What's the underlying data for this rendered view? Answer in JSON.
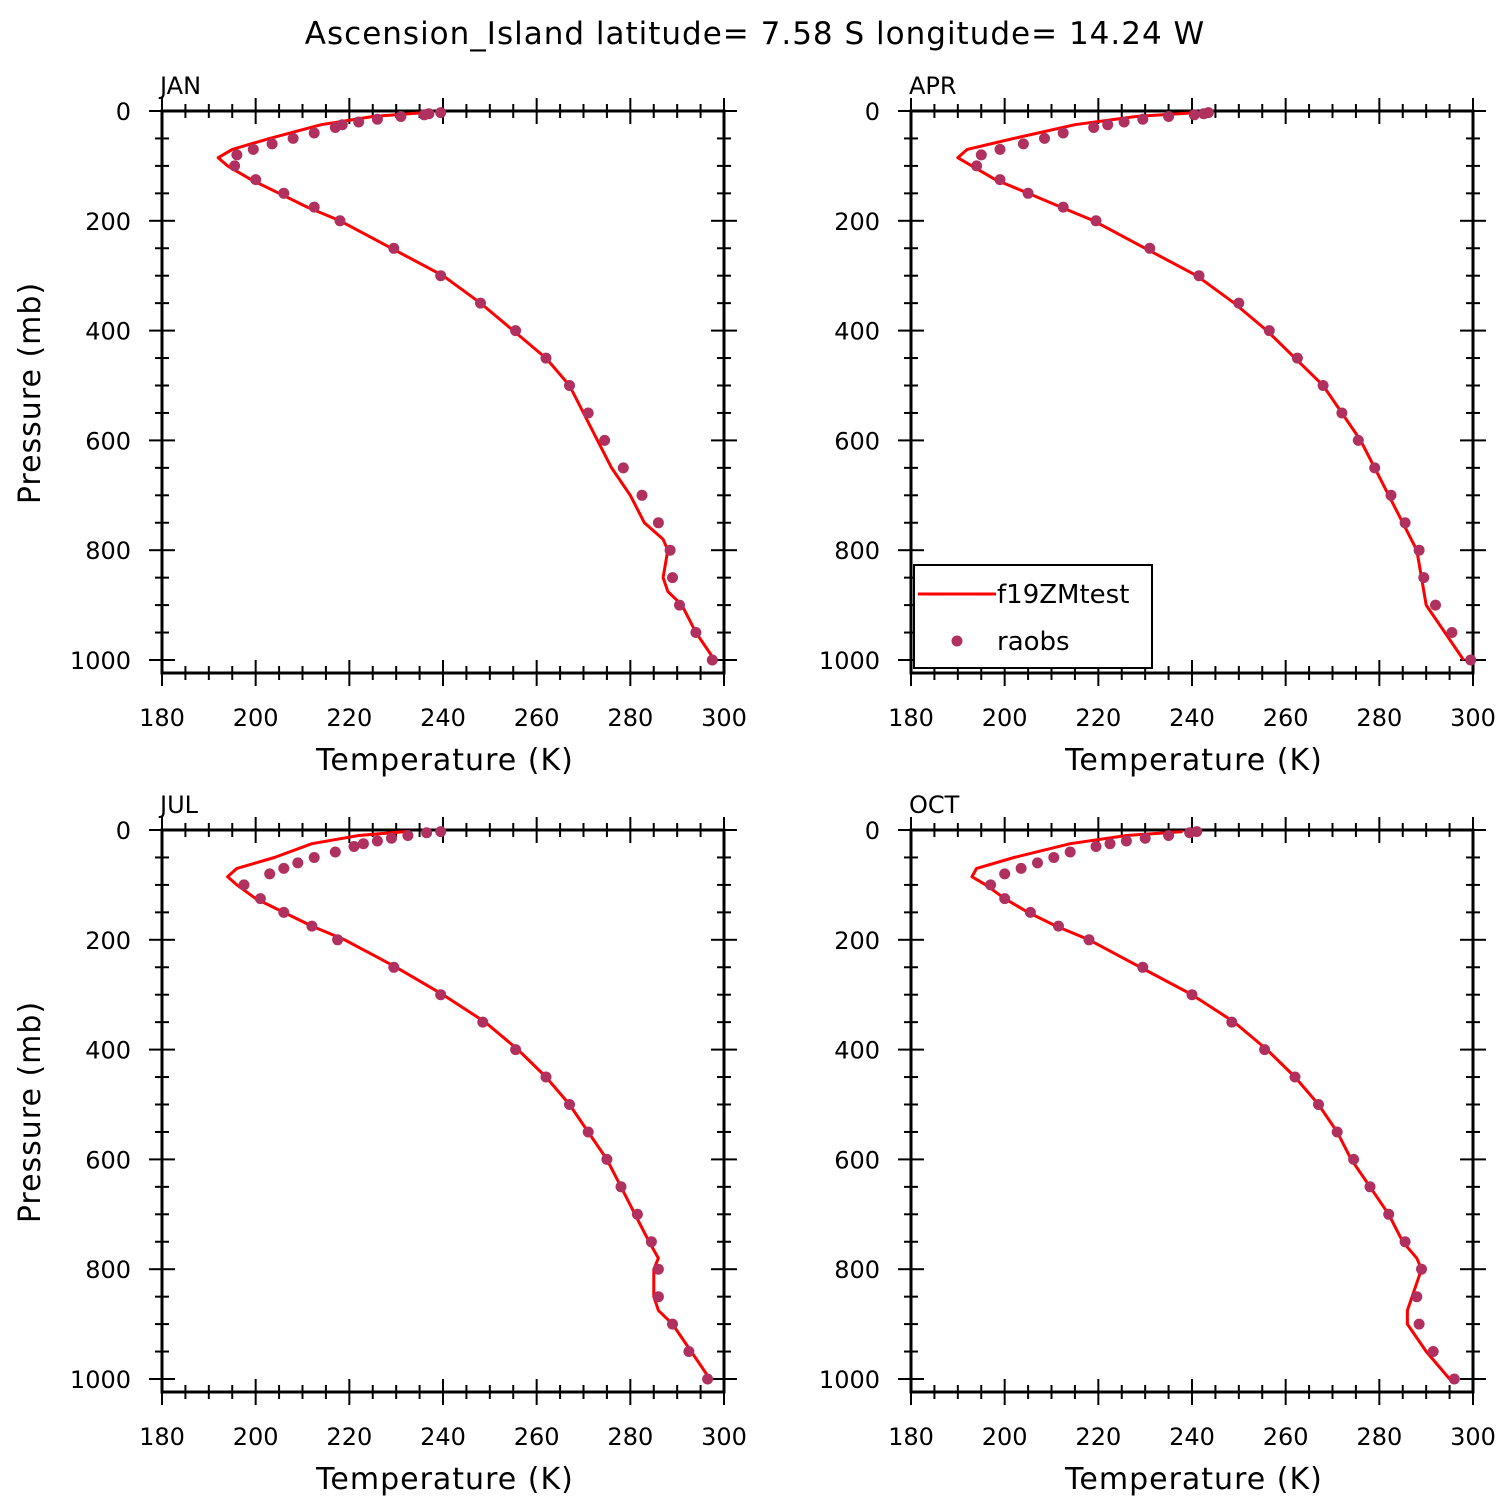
{
  "title": "Ascension_Island  latitude= 7.58 S longitude= 14.24 W",
  "legend": {
    "line_label": "f19ZMtest",
    "points_label": "raobs"
  },
  "colors": {
    "model_line": "#ff0000",
    "obs_points": "#b03060",
    "axes": "#000000"
  },
  "chart_data": [
    {
      "type": "line",
      "panel": "JAN",
      "xlabel": "Temperature (K)",
      "ylabel": "Pressure (mb)",
      "xlim": [
        180,
        300
      ],
      "ylim": [
        1000,
        0
      ],
      "xticks": [
        180,
        200,
        220,
        240,
        260,
        280,
        300
      ],
      "yticks": [
        0,
        200,
        400,
        600,
        800,
        1000
      ],
      "series": [
        {
          "name": "f19ZMtest",
          "style": "line",
          "points": [
            [
              236,
              3
            ],
            [
              225,
              10
            ],
            [
              214,
              25
            ],
            [
              203,
              50
            ],
            [
              195,
              70
            ],
            [
              192,
              85
            ],
            [
              194,
              100
            ],
            [
              199,
              125
            ],
            [
              205,
              150
            ],
            [
              211,
              175
            ],
            [
              218,
              200
            ],
            [
              229,
              250
            ],
            [
              240,
              300
            ],
            [
              248,
              350
            ],
            [
              255,
              400
            ],
            [
              262,
              450
            ],
            [
              267,
              500
            ],
            [
              270,
              550
            ],
            [
              273,
              600
            ],
            [
              276,
              650
            ],
            [
              280,
              700
            ],
            [
              283,
              750
            ],
            [
              287,
              780
            ],
            [
              288,
              800
            ],
            [
              287,
              850
            ],
            [
              288,
              875
            ],
            [
              291,
              900
            ],
            [
              294,
              950
            ],
            [
              298,
              1000
            ]
          ]
        },
        {
          "name": "raobs",
          "style": "scatter",
          "points": [
            [
              239.5,
              3
            ],
            [
              237,
              5
            ],
            [
              236,
              7
            ],
            [
              231,
              10
            ],
            [
              226,
              15
            ],
            [
              222,
              20
            ],
            [
              218.5,
              25
            ],
            [
              217,
              30
            ],
            [
              212.5,
              40
            ],
            [
              208,
              50
            ],
            [
              203.5,
              60
            ],
            [
              199.5,
              70
            ],
            [
              196,
              80
            ],
            [
              195.5,
              100
            ],
            [
              200,
              125
            ],
            [
              206,
              150
            ],
            [
              212.5,
              175
            ],
            [
              218,
              200
            ],
            [
              229.5,
              250
            ],
            [
              239.5,
              300
            ],
            [
              248,
              350
            ],
            [
              255.5,
              400
            ],
            [
              262,
              450
            ],
            [
              267,
              500
            ],
            [
              271,
              550
            ],
            [
              274.5,
              600
            ],
            [
              278.5,
              650
            ],
            [
              282.5,
              700
            ],
            [
              286,
              750
            ],
            [
              288.5,
              800
            ],
            [
              289,
              850
            ],
            [
              290.5,
              900
            ],
            [
              294,
              950
            ],
            [
              297.5,
              1000
            ]
          ]
        }
      ]
    },
    {
      "type": "line",
      "panel": "APR",
      "xlabel": "Temperature (K)",
      "ylabel": "",
      "xlim": [
        180,
        300
      ],
      "ylim": [
        1000,
        0
      ],
      "xticks": [
        180,
        200,
        220,
        240,
        260,
        280,
        300
      ],
      "yticks": [
        0,
        200,
        400,
        600,
        800,
        1000
      ],
      "series": [
        {
          "name": "f19ZMtest",
          "style": "line",
          "points": [
            [
              241,
              3
            ],
            [
              228,
              10
            ],
            [
              215,
              25
            ],
            [
              202,
              50
            ],
            [
              192,
              70
            ],
            [
              190,
              85
            ],
            [
              193,
              100
            ],
            [
              198,
              125
            ],
            [
              205,
              150
            ],
            [
              212,
              175
            ],
            [
              219,
              200
            ],
            [
              230,
              250
            ],
            [
              241,
              300
            ],
            [
              249,
              350
            ],
            [
              256,
              400
            ],
            [
              262,
              450
            ],
            [
              268,
              500
            ],
            [
              272,
              550
            ],
            [
              276,
              600
            ],
            [
              279,
              650
            ],
            [
              282,
              700
            ],
            [
              285,
              750
            ],
            [
              288,
              800
            ],
            [
              289,
              850
            ],
            [
              290,
              900
            ],
            [
              294,
              950
            ],
            [
              298,
              1000
            ]
          ]
        },
        {
          "name": "raobs",
          "style": "scatter",
          "points": [
            [
              243.5,
              3
            ],
            [
              242.5,
              5
            ],
            [
              240.5,
              7
            ],
            [
              235,
              10
            ],
            [
              229.5,
              15
            ],
            [
              225.5,
              20
            ],
            [
              222,
              25
            ],
            [
              219,
              30
            ],
            [
              212.5,
              40
            ],
            [
              208.5,
              50
            ],
            [
              204,
              60
            ],
            [
              199,
              70
            ],
            [
              195,
              80
            ],
            [
              194,
              100
            ],
            [
              199,
              125
            ],
            [
              205,
              150
            ],
            [
              212.5,
              175
            ],
            [
              219.5,
              200
            ],
            [
              231,
              250
            ],
            [
              241.5,
              300
            ],
            [
              250,
              350
            ],
            [
              256.5,
              400
            ],
            [
              262.5,
              450
            ],
            [
              268,
              500
            ],
            [
              272,
              550
            ],
            [
              275.5,
              600
            ],
            [
              279,
              650
            ],
            [
              282.5,
              700
            ],
            [
              285.5,
              750
            ],
            [
              288.5,
              800
            ],
            [
              289.5,
              850
            ],
            [
              292,
              900
            ],
            [
              295.5,
              950
            ],
            [
              299.5,
              1000
            ]
          ]
        }
      ]
    },
    {
      "type": "line",
      "panel": "JUL",
      "xlabel": "Temperature (K)",
      "ylabel": "Pressure (mb)",
      "xlim": [
        180,
        300
      ],
      "ylim": [
        1000,
        0
      ],
      "xticks": [
        180,
        200,
        220,
        240,
        260,
        280,
        300
      ],
      "yticks": [
        0,
        200,
        400,
        600,
        800,
        1000
      ],
      "series": [
        {
          "name": "f19ZMtest",
          "style": "line",
          "points": [
            [
              232,
              3
            ],
            [
              222,
              10
            ],
            [
              212,
              25
            ],
            [
              204,
              50
            ],
            [
              196,
              70
            ],
            [
              194,
              85
            ],
            [
              196,
              100
            ],
            [
              200,
              125
            ],
            [
              206,
              150
            ],
            [
              212,
              175
            ],
            [
              219,
              200
            ],
            [
              230,
              250
            ],
            [
              240,
              300
            ],
            [
              249,
              350
            ],
            [
              256,
              400
            ],
            [
              262,
              450
            ],
            [
              267,
              500
            ],
            [
              271,
              550
            ],
            [
              275,
              600
            ],
            [
              278,
              650
            ],
            [
              281,
              700
            ],
            [
              284,
              750
            ],
            [
              286,
              780
            ],
            [
              285,
              800
            ],
            [
              285,
              850
            ],
            [
              286,
              875
            ],
            [
              289,
              900
            ],
            [
              293,
              950
            ],
            [
              297,
              1000
            ]
          ]
        },
        {
          "name": "raobs",
          "style": "scatter",
          "points": [
            [
              239.5,
              3
            ],
            [
              236.5,
              5
            ],
            [
              232.5,
              10
            ],
            [
              229,
              15
            ],
            [
              226,
              20
            ],
            [
              223,
              25
            ],
            [
              221,
              30
            ],
            [
              217,
              40
            ],
            [
              212.5,
              50
            ],
            [
              209,
              60
            ],
            [
              206,
              70
            ],
            [
              203,
              80
            ],
            [
              197.5,
              100
            ],
            [
              201,
              125
            ],
            [
              206,
              150
            ],
            [
              212,
              175
            ],
            [
              217.5,
              200
            ],
            [
              229.5,
              250
            ],
            [
              239.5,
              300
            ],
            [
              248.5,
              350
            ],
            [
              255.5,
              400
            ],
            [
              262,
              450
            ],
            [
              267,
              500
            ],
            [
              271,
              550
            ],
            [
              275,
              600
            ],
            [
              278,
              650
            ],
            [
              281.5,
              700
            ],
            [
              284.5,
              750
            ],
            [
              286,
              800
            ],
            [
              286,
              850
            ],
            [
              289,
              900
            ],
            [
              292.5,
              950
            ],
            [
              296.5,
              1000
            ]
          ]
        }
      ]
    },
    {
      "type": "line",
      "panel": "OCT",
      "xlabel": "Temperature (K)",
      "ylabel": "",
      "xlim": [
        180,
        300
      ],
      "ylim": [
        1000,
        0
      ],
      "xticks": [
        180,
        200,
        220,
        240,
        260,
        280,
        300
      ],
      "yticks": [
        0,
        200,
        400,
        600,
        800,
        1000
      ],
      "series": [
        {
          "name": "f19ZMtest",
          "style": "line",
          "points": [
            [
              238,
              3
            ],
            [
              226,
              10
            ],
            [
              214,
              25
            ],
            [
              202,
              50
            ],
            [
              194,
              70
            ],
            [
              193,
              85
            ],
            [
              196,
              100
            ],
            [
              200,
              125
            ],
            [
              205,
              150
            ],
            [
              211,
              175
            ],
            [
              218,
              200
            ],
            [
              229,
              250
            ],
            [
              240,
              300
            ],
            [
              249,
              350
            ],
            [
              256,
              400
            ],
            [
              262,
              450
            ],
            [
              267,
              500
            ],
            [
              271,
              550
            ],
            [
              274,
              600
            ],
            [
              278,
              650
            ],
            [
              282,
              700
            ],
            [
              285,
              750
            ],
            [
              288,
              780
            ],
            [
              289,
              800
            ],
            [
              287,
              850
            ],
            [
              286,
              875
            ],
            [
              286,
              900
            ],
            [
              290,
              950
            ],
            [
              295,
              1000
            ]
          ]
        },
        {
          "name": "raobs",
          "style": "scatter",
          "points": [
            [
              241,
              3
            ],
            [
              239.5,
              5
            ],
            [
              235,
              10
            ],
            [
              230,
              15
            ],
            [
              226,
              20
            ],
            [
              222.5,
              25
            ],
            [
              219.5,
              30
            ],
            [
              214,
              40
            ],
            [
              210.5,
              50
            ],
            [
              207,
              60
            ],
            [
              203.5,
              70
            ],
            [
              200,
              80
            ],
            [
              197,
              100
            ],
            [
              200,
              125
            ],
            [
              205.5,
              150
            ],
            [
              211.5,
              175
            ],
            [
              218,
              200
            ],
            [
              229.5,
              250
            ],
            [
              240,
              300
            ],
            [
              248.5,
              350
            ],
            [
              255.5,
              400
            ],
            [
              262,
              450
            ],
            [
              267,
              500
            ],
            [
              271,
              550
            ],
            [
              274.5,
              600
            ],
            [
              278,
              650
            ],
            [
              282,
              700
            ],
            [
              285.5,
              750
            ],
            [
              289,
              800
            ],
            [
              288,
              850
            ],
            [
              288.5,
              900
            ],
            [
              291.5,
              950
            ],
            [
              296,
              1000
            ]
          ]
        }
      ]
    }
  ]
}
